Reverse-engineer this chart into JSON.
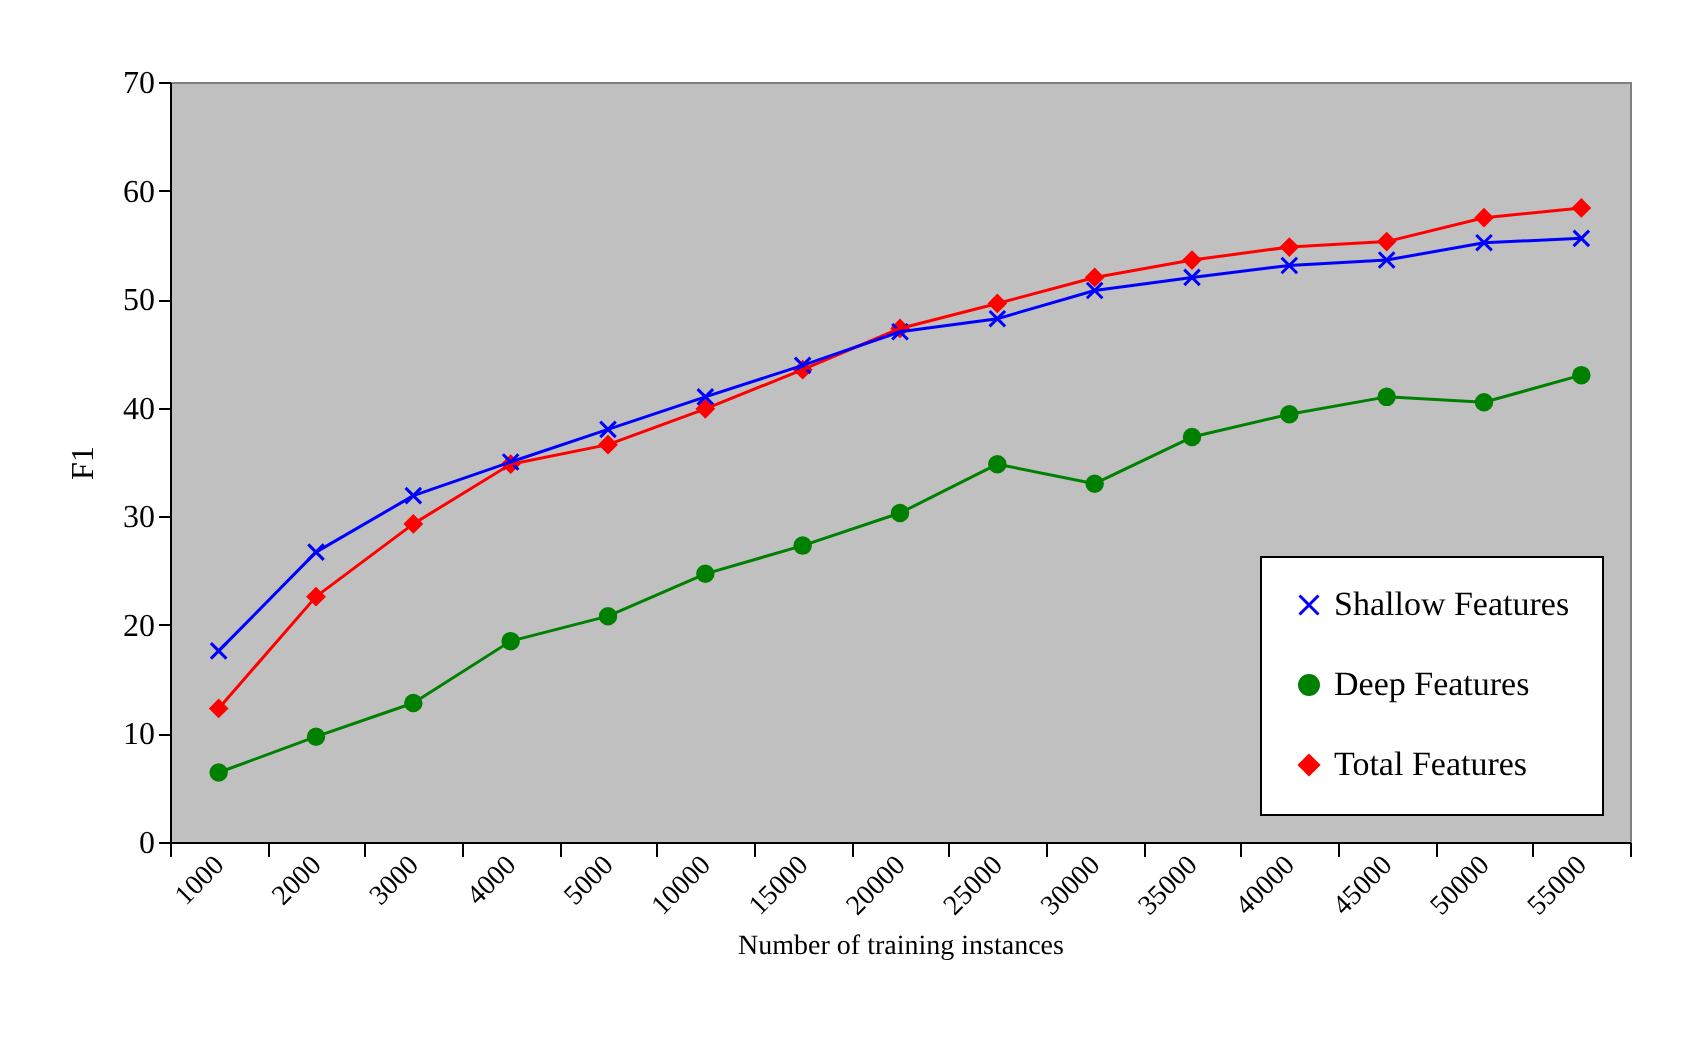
{
  "chart_data": {
    "type": "line",
    "xlabel": "Number of training instances",
    "ylabel": "F1",
    "categories": [
      "1000",
      "2000",
      "3000",
      "4000",
      "5000",
      "10000",
      "15000",
      "20000",
      "25000",
      "30000",
      "35000",
      "40000",
      "45000",
      "50000",
      "55000"
    ],
    "series": [
      {
        "name": "Shallow Features",
        "color": "#0000ff",
        "marker": "cross",
        "values": [
          17.6,
          26.7,
          31.9,
          35.0,
          38.0,
          41.0,
          43.9,
          47.0,
          48.2,
          50.8,
          52.0,
          53.1,
          53.6,
          55.2,
          55.6
        ]
      },
      {
        "name": "Deep Features",
        "color": "#008000",
        "marker": "circle",
        "values": [
          6.4,
          9.7,
          12.8,
          18.5,
          20.8,
          24.7,
          27.3,
          30.3,
          34.8,
          33.0,
          37.3,
          39.4,
          41.0,
          40.5,
          43.0
        ]
      },
      {
        "name": "Total Features",
        "color": "#ff0000",
        "marker": "diamond",
        "values": [
          12.3,
          22.6,
          29.3,
          34.8,
          36.6,
          39.9,
          43.5,
          47.3,
          49.6,
          52.0,
          53.6,
          54.8,
          55.3,
          57.5,
          58.4
        ]
      }
    ],
    "ylim": [
      0,
      70
    ],
    "yticks": [
      0,
      10,
      20,
      30,
      40,
      50,
      60,
      70
    ],
    "grid": false,
    "legend": "bottom right"
  }
}
